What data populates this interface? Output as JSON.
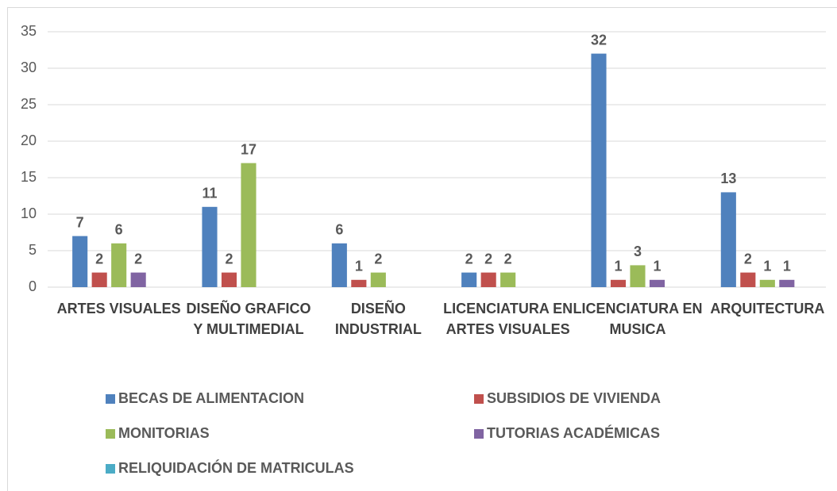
{
  "chart_data": {
    "type": "bar",
    "categories": [
      "ARTES VISUALES",
      "DISEÑO GRAFICO Y MULTIMEDIAL",
      "DISEÑO INDUSTRIAL",
      "LICENCIATURA EN ARTES VISUALES",
      "LICENCIATURA EN MUSICA",
      "ARQUITECTURA"
    ],
    "series": [
      {
        "name": "BECAS DE ALIMENTACION",
        "color": "#4f81bd",
        "values": [
          7,
          11,
          6,
          2,
          32,
          13
        ]
      },
      {
        "name": "SUBSIDIOS DE VIVIENDA",
        "color": "#c0504d",
        "values": [
          2,
          2,
          1,
          2,
          1,
          2
        ]
      },
      {
        "name": "MONITORIAS",
        "color": "#9bbb59",
        "values": [
          6,
          17,
          2,
          2,
          3,
          1
        ]
      },
      {
        "name": "TUTORIAS ACADÉMICAS",
        "color": "#8064a2",
        "values": [
          2,
          null,
          null,
          null,
          1,
          1
        ]
      },
      {
        "name": "RELIQUIDACIÓN DE MATRICULAS",
        "color": "#4bacc6",
        "values": [
          null,
          null,
          null,
          null,
          null,
          null
        ]
      }
    ],
    "ylim": [
      0,
      35
    ],
    "yticks": [
      0,
      5,
      10,
      15,
      20,
      25,
      30,
      35
    ],
    "grid": true,
    "legend": "bottom"
  }
}
